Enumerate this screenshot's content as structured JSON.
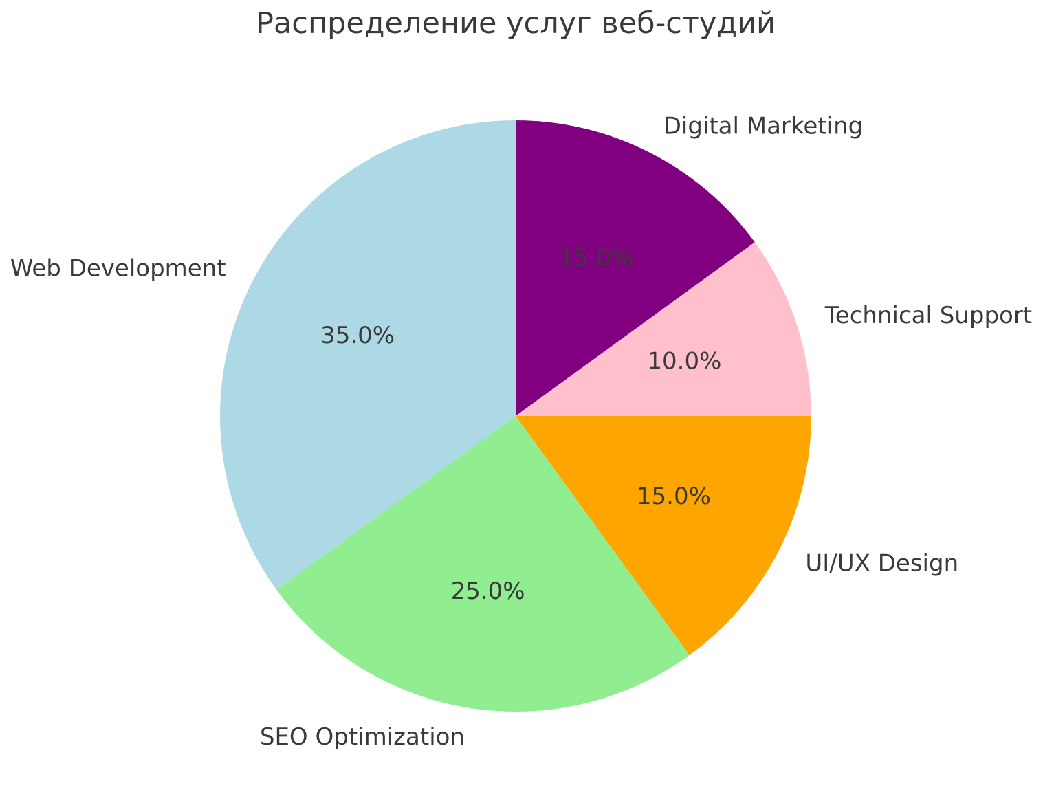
{
  "page": {
    "background": "#FFFFFF",
    "text_color": "#3A3A3A"
  },
  "chart_data": {
    "type": "pie",
    "title": "Распределение услуг веб-студий",
    "categories": [
      "Digital Marketing",
      "Technical Support",
      "UI/UX Design",
      "SEO Optimization",
      "Web Development"
    ],
    "values": [
      15.0,
      10.0,
      15.0,
      25.0,
      35.0
    ],
    "slices": [
      {
        "label": "Digital Marketing",
        "value": 15.0,
        "pct_label": "15.0%",
        "color": "#800080"
      },
      {
        "label": "Technical Support",
        "value": 10.0,
        "pct_label": "10.0%",
        "color": "#FFC0CB"
      },
      {
        "label": "UI/UX Design",
        "value": 15.0,
        "pct_label": "15.0%",
        "color": "#FFA500"
      },
      {
        "label": "SEO Optimization",
        "value": 25.0,
        "pct_label": "25.0%",
        "color": "#90EE90"
      },
      {
        "label": "Web Development",
        "value": 35.0,
        "pct_label": "35.0%",
        "color": "#ADD8E6"
      }
    ],
    "layout": {
      "start_angle_deg": 90,
      "direction": "clockwise",
      "label_distance": 1.1,
      "pct_distance": 0.6,
      "legend": "none",
      "grid": "off",
      "text_color": "#3A3A3A"
    }
  }
}
